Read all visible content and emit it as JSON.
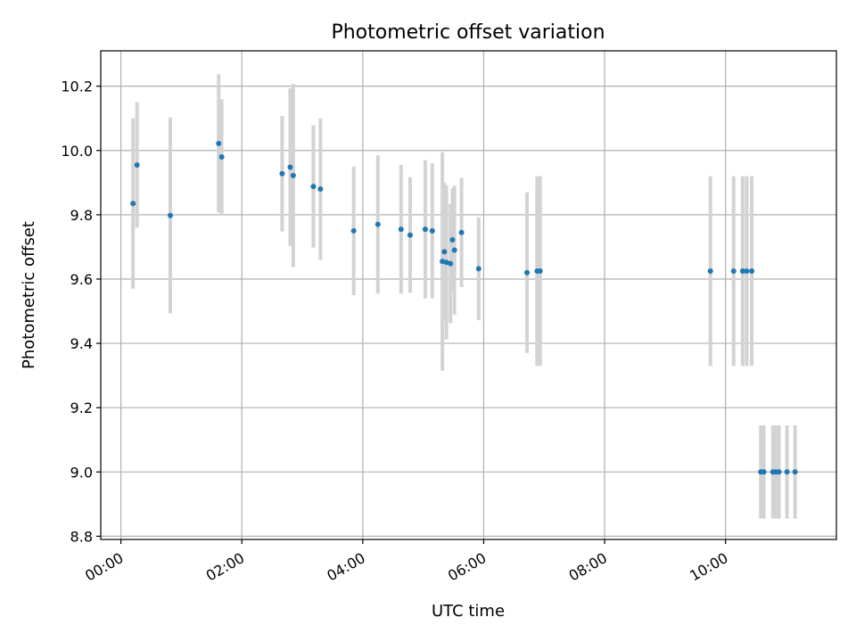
{
  "chart_data": {
    "type": "scatter",
    "title": "Photometric offset variation",
    "xlabel": "UTC time",
    "ylabel": "Photometric offset",
    "xlim": [
      "-00:20",
      "11:50"
    ],
    "ylim": [
      8.79,
      10.31
    ],
    "x_tick_labels": [
      "00:00",
      "02:00",
      "04:00",
      "06:00",
      "08:00",
      "10:00"
    ],
    "y_tick_labels": [
      "8.8",
      "9.0",
      "9.2",
      "9.4",
      "9.6",
      "9.8",
      "10.0",
      "10.2"
    ],
    "grid": true,
    "point_color": "#1f77b4",
    "errorbar_color": "#d3d3d3",
    "series": [
      {
        "points": [
          {
            "x": "00:12",
            "y": 9.835,
            "err": 0.265
          },
          {
            "x": "00:16",
            "y": 9.955,
            "err": 0.195
          },
          {
            "x": "00:49",
            "y": 9.798,
            "err": 0.305
          },
          {
            "x": "01:37",
            "y": 10.022,
            "err": 0.215
          },
          {
            "x": "01:40",
            "y": 9.98,
            "err": 0.18
          },
          {
            "x": "02:40",
            "y": 9.928,
            "err": 0.18
          },
          {
            "x": "02:48",
            "y": 9.948,
            "err": 0.245
          },
          {
            "x": "02:51",
            "y": 9.922,
            "err": 0.285
          },
          {
            "x": "03:11",
            "y": 9.888,
            "err": 0.19
          },
          {
            "x": "03:18",
            "y": 9.88,
            "err": 0.22
          },
          {
            "x": "03:51",
            "y": 9.75,
            "err": 0.2
          },
          {
            "x": "04:15",
            "y": 9.77,
            "err": 0.215
          },
          {
            "x": "04:38",
            "y": 9.755,
            "err": 0.2
          },
          {
            "x": "04:47",
            "y": 9.737,
            "err": 0.18
          },
          {
            "x": "05:02",
            "y": 9.755,
            "err": 0.215
          },
          {
            "x": "05:09",
            "y": 9.75,
            "err": 0.21
          },
          {
            "x": "05:19",
            "y": 9.655,
            "err": 0.34
          },
          {
            "x": "05:21",
            "y": 9.685,
            "err": 0.215
          },
          {
            "x": "05:23",
            "y": 9.652,
            "err": 0.24
          },
          {
            "x": "05:27",
            "y": 9.648,
            "err": 0.185
          },
          {
            "x": "05:29",
            "y": 9.722,
            "err": 0.16
          },
          {
            "x": "05:31",
            "y": 9.69,
            "err": 0.2
          },
          {
            "x": "05:38",
            "y": 9.745,
            "err": 0.17
          },
          {
            "x": "05:55",
            "y": 9.632,
            "err": 0.16
          },
          {
            "x": "06:43",
            "y": 9.62,
            "err": 0.25
          },
          {
            "x": "06:53",
            "y": 9.625,
            "err": 0.295
          },
          {
            "x": "06:56",
            "y": 9.625,
            "err": 0.295
          },
          {
            "x": "09:45",
            "y": 9.625,
            "err": 0.295
          },
          {
            "x": "10:08",
            "y": 9.625,
            "err": 0.295
          },
          {
            "x": "10:17",
            "y": 9.625,
            "err": 0.295
          },
          {
            "x": "10:21",
            "y": 9.625,
            "err": 0.295
          },
          {
            "x": "10:26",
            "y": 9.625,
            "err": 0.295
          },
          {
            "x": "10:35",
            "y": 9.0,
            "err": 0.145
          },
          {
            "x": "10:38",
            "y": 9.0,
            "err": 0.145
          },
          {
            "x": "10:47",
            "y": 9.0,
            "err": 0.145
          },
          {
            "x": "10:50",
            "y": 9.0,
            "err": 0.145
          },
          {
            "x": "10:53",
            "y": 9.0,
            "err": 0.145
          },
          {
            "x": "11:01",
            "y": 9.0,
            "err": 0.145
          },
          {
            "x": "11:09",
            "y": 9.0,
            "err": 0.145
          }
        ]
      }
    ]
  }
}
